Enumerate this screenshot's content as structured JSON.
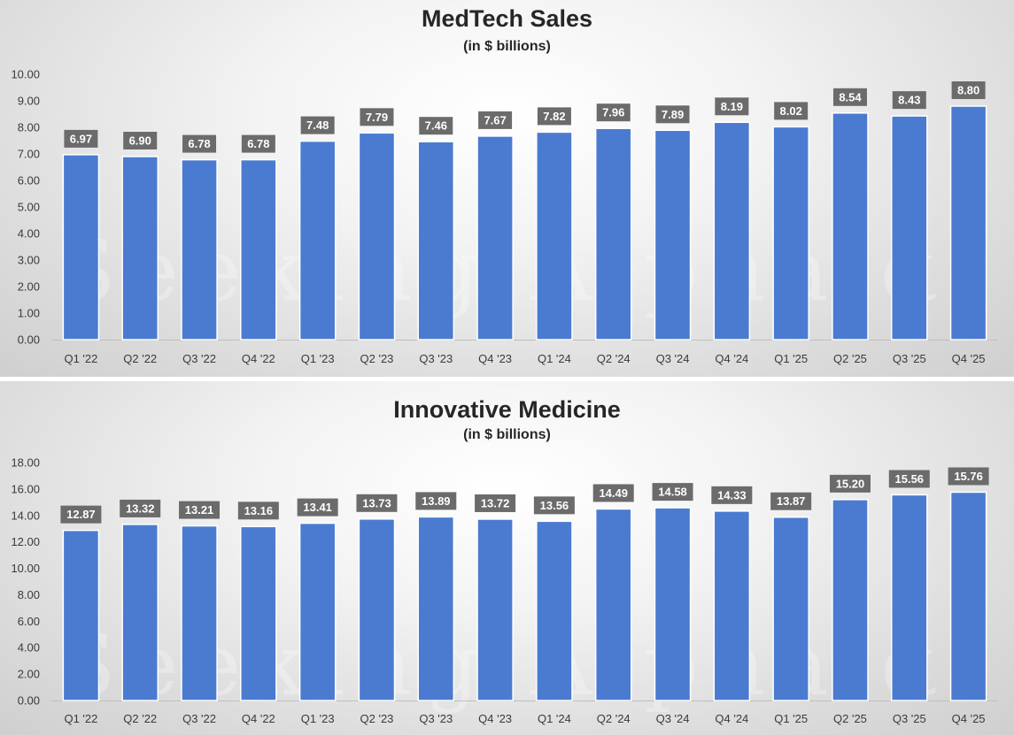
{
  "colors": {
    "bar": "#4a7bd0",
    "label_bg": "#6b6b6b",
    "axis": "#bfbfbf"
  },
  "watermark": "Seeking Alpha",
  "watermark_glyph": "α",
  "chart_data": [
    {
      "type": "bar",
      "title": "MedTech Sales",
      "subtitle": "(in $ billions)",
      "categories": [
        "Q1 '22",
        "Q2 '22",
        "Q3 '22",
        "Q4 '22",
        "Q1 '23",
        "Q2 '23",
        "Q3 '23",
        "Q4 '23",
        "Q1 '24",
        "Q2 '24",
        "Q3 '24",
        "Q4 '24",
        "Q1 '25",
        "Q2 '25",
        "Q3 '25",
        "Q4 '25"
      ],
      "values": [
        6.97,
        6.9,
        6.78,
        6.78,
        7.48,
        7.79,
        7.46,
        7.67,
        7.82,
        7.96,
        7.89,
        8.19,
        8.02,
        8.54,
        8.43,
        8.8
      ],
      "value_labels": [
        "6.97",
        "6.90",
        "6.78",
        "6.78",
        "7.48",
        "7.79",
        "7.46",
        "7.67",
        "7.82",
        "7.96",
        "7.89",
        "8.19",
        "8.02",
        "8.54",
        "8.43",
        "8.80"
      ],
      "ylim": [
        0,
        10
      ],
      "yticks": [
        "0.00",
        "1.00",
        "2.00",
        "3.00",
        "4.00",
        "5.00",
        "6.00",
        "7.00",
        "8.00",
        "9.00",
        "10.00"
      ],
      "grid": false,
      "legend": "none"
    },
    {
      "type": "bar",
      "title": "Innovative Medicine",
      "subtitle": "(in $ billions)",
      "categories": [
        "Q1 '22",
        "Q2 '22",
        "Q3 '22",
        "Q4 '22",
        "Q1 '23",
        "Q2 '23",
        "Q3 '23",
        "Q4 '23",
        "Q1 '24",
        "Q2 '24",
        "Q3 '24",
        "Q4 '24",
        "Q1 '25",
        "Q2 '25",
        "Q3 '25",
        "Q4 '25"
      ],
      "values": [
        12.87,
        13.32,
        13.21,
        13.16,
        13.41,
        13.73,
        13.89,
        13.72,
        13.56,
        14.49,
        14.58,
        14.33,
        13.87,
        15.2,
        15.56,
        15.76
      ],
      "value_labels": [
        "12.87",
        "13.32",
        "13.21",
        "13.16",
        "13.41",
        "13.73",
        "13.89",
        "13.72",
        "13.56",
        "14.49",
        "14.58",
        "14.33",
        "13.87",
        "15.20",
        "15.56",
        "15.76"
      ],
      "ylim": [
        0,
        18
      ],
      "yticks": [
        "0.00",
        "2.00",
        "4.00",
        "6.00",
        "8.00",
        "10.00",
        "12.00",
        "14.00",
        "16.00",
        "18.00"
      ],
      "grid": false,
      "legend": "none"
    }
  ]
}
